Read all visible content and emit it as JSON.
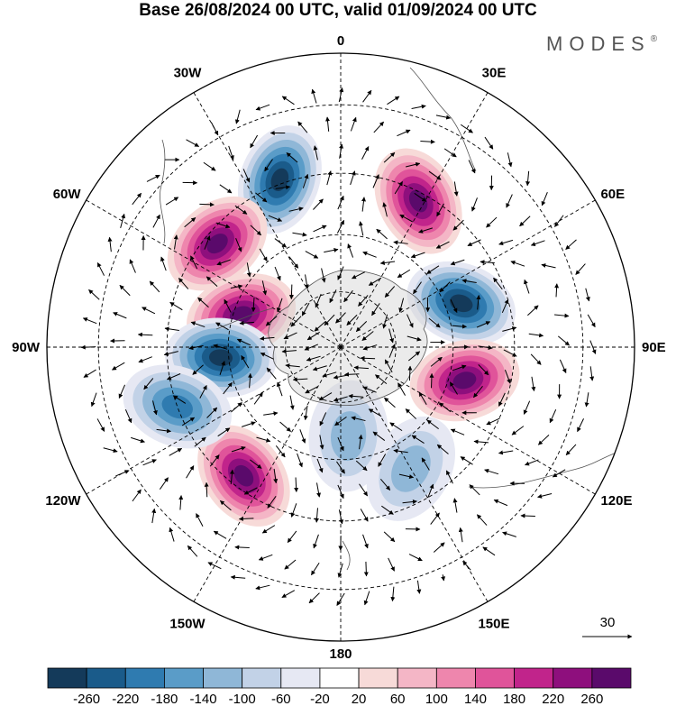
{
  "header": {
    "title": "Base 26/08/2024 00 UTC, valid 01/09/2024 00 UTC",
    "brand": "MODES",
    "brand_mark": "®"
  },
  "map": {
    "projection": "south-polar-stereographic",
    "longitude_labels": [
      {
        "name": "lon-0",
        "text": "0",
        "lon": 0
      },
      {
        "name": "lon-30e",
        "text": "30E",
        "lon": 30
      },
      {
        "name": "lon-60e",
        "text": "60E",
        "lon": 60
      },
      {
        "name": "lon-90e",
        "text": "90E",
        "lon": 90
      },
      {
        "name": "lon-120e",
        "text": "120E",
        "lon": 120
      },
      {
        "name": "lon-150e",
        "text": "150E",
        "lon": 150
      },
      {
        "name": "lon-180",
        "text": "180",
        "lon": 180
      },
      {
        "name": "lon-150w",
        "text": "150W",
        "lon": -150
      },
      {
        "name": "lon-120w",
        "text": "120W",
        "lon": -120
      },
      {
        "name": "lon-90w",
        "text": "90W",
        "lon": -90
      },
      {
        "name": "lon-60w",
        "text": "60W",
        "lon": -60
      },
      {
        "name": "lon-30w",
        "text": "30W",
        "lon": -30
      }
    ],
    "reference_vector": {
      "value": "30"
    },
    "anomaly_centers": [
      {
        "name": "negative-anomaly-south-atlantic",
        "lon": -20,
        "lat": -44,
        "value": -260
      },
      {
        "name": "positive-anomaly-east-atlantic",
        "lon": 28,
        "lat": -47,
        "value": 260
      },
      {
        "name": "positive-anomaly-south-america",
        "lon": -50,
        "lat": -48,
        "value": 260
      },
      {
        "name": "positive-anomaly-drake-passage",
        "lon": -72,
        "lat": -62,
        "value": 260
      },
      {
        "name": "negative-anomaly-bellingshausen",
        "lon": -95,
        "lat": -58,
        "value": -260
      },
      {
        "name": "negative-anomaly-indian-ocean",
        "lon": 70,
        "lat": -56,
        "value": -260
      },
      {
        "name": "positive-anomaly-south-indian",
        "lon": 105,
        "lat": -56,
        "value": 260
      },
      {
        "name": "positive-anomaly-south-pacific",
        "lon": -143,
        "lat": -48,
        "value": 260
      },
      {
        "name": "negative-anomaly-southeast-pacific",
        "lon": -110,
        "lat": -45,
        "value": -160
      },
      {
        "name": "negative-anomaly-ross-sea",
        "lon": 175,
        "lat": -66,
        "value": -100
      },
      {
        "name": "negative-anomaly-tasman",
        "lon": 150,
        "lat": -53,
        "value": -100
      }
    ]
  },
  "colorbar": {
    "ticks": [
      "-260",
      "-220",
      "-180",
      "-140",
      "-100",
      "-60",
      "-20",
      "20",
      "60",
      "100",
      "140",
      "180",
      "220",
      "260"
    ],
    "colors": [
      "#143a5a",
      "#1a5b8a",
      "#2f7bb0",
      "#5a9cc8",
      "#8fb7d7",
      "#c2d2e7",
      "#e6e8f3",
      "#ffffff",
      "#f7dad8",
      "#f4b6c6",
      "#ee86ad",
      "#e0549a",
      "#c1248b",
      "#8e0f7d",
      "#5a0a6b"
    ]
  }
}
